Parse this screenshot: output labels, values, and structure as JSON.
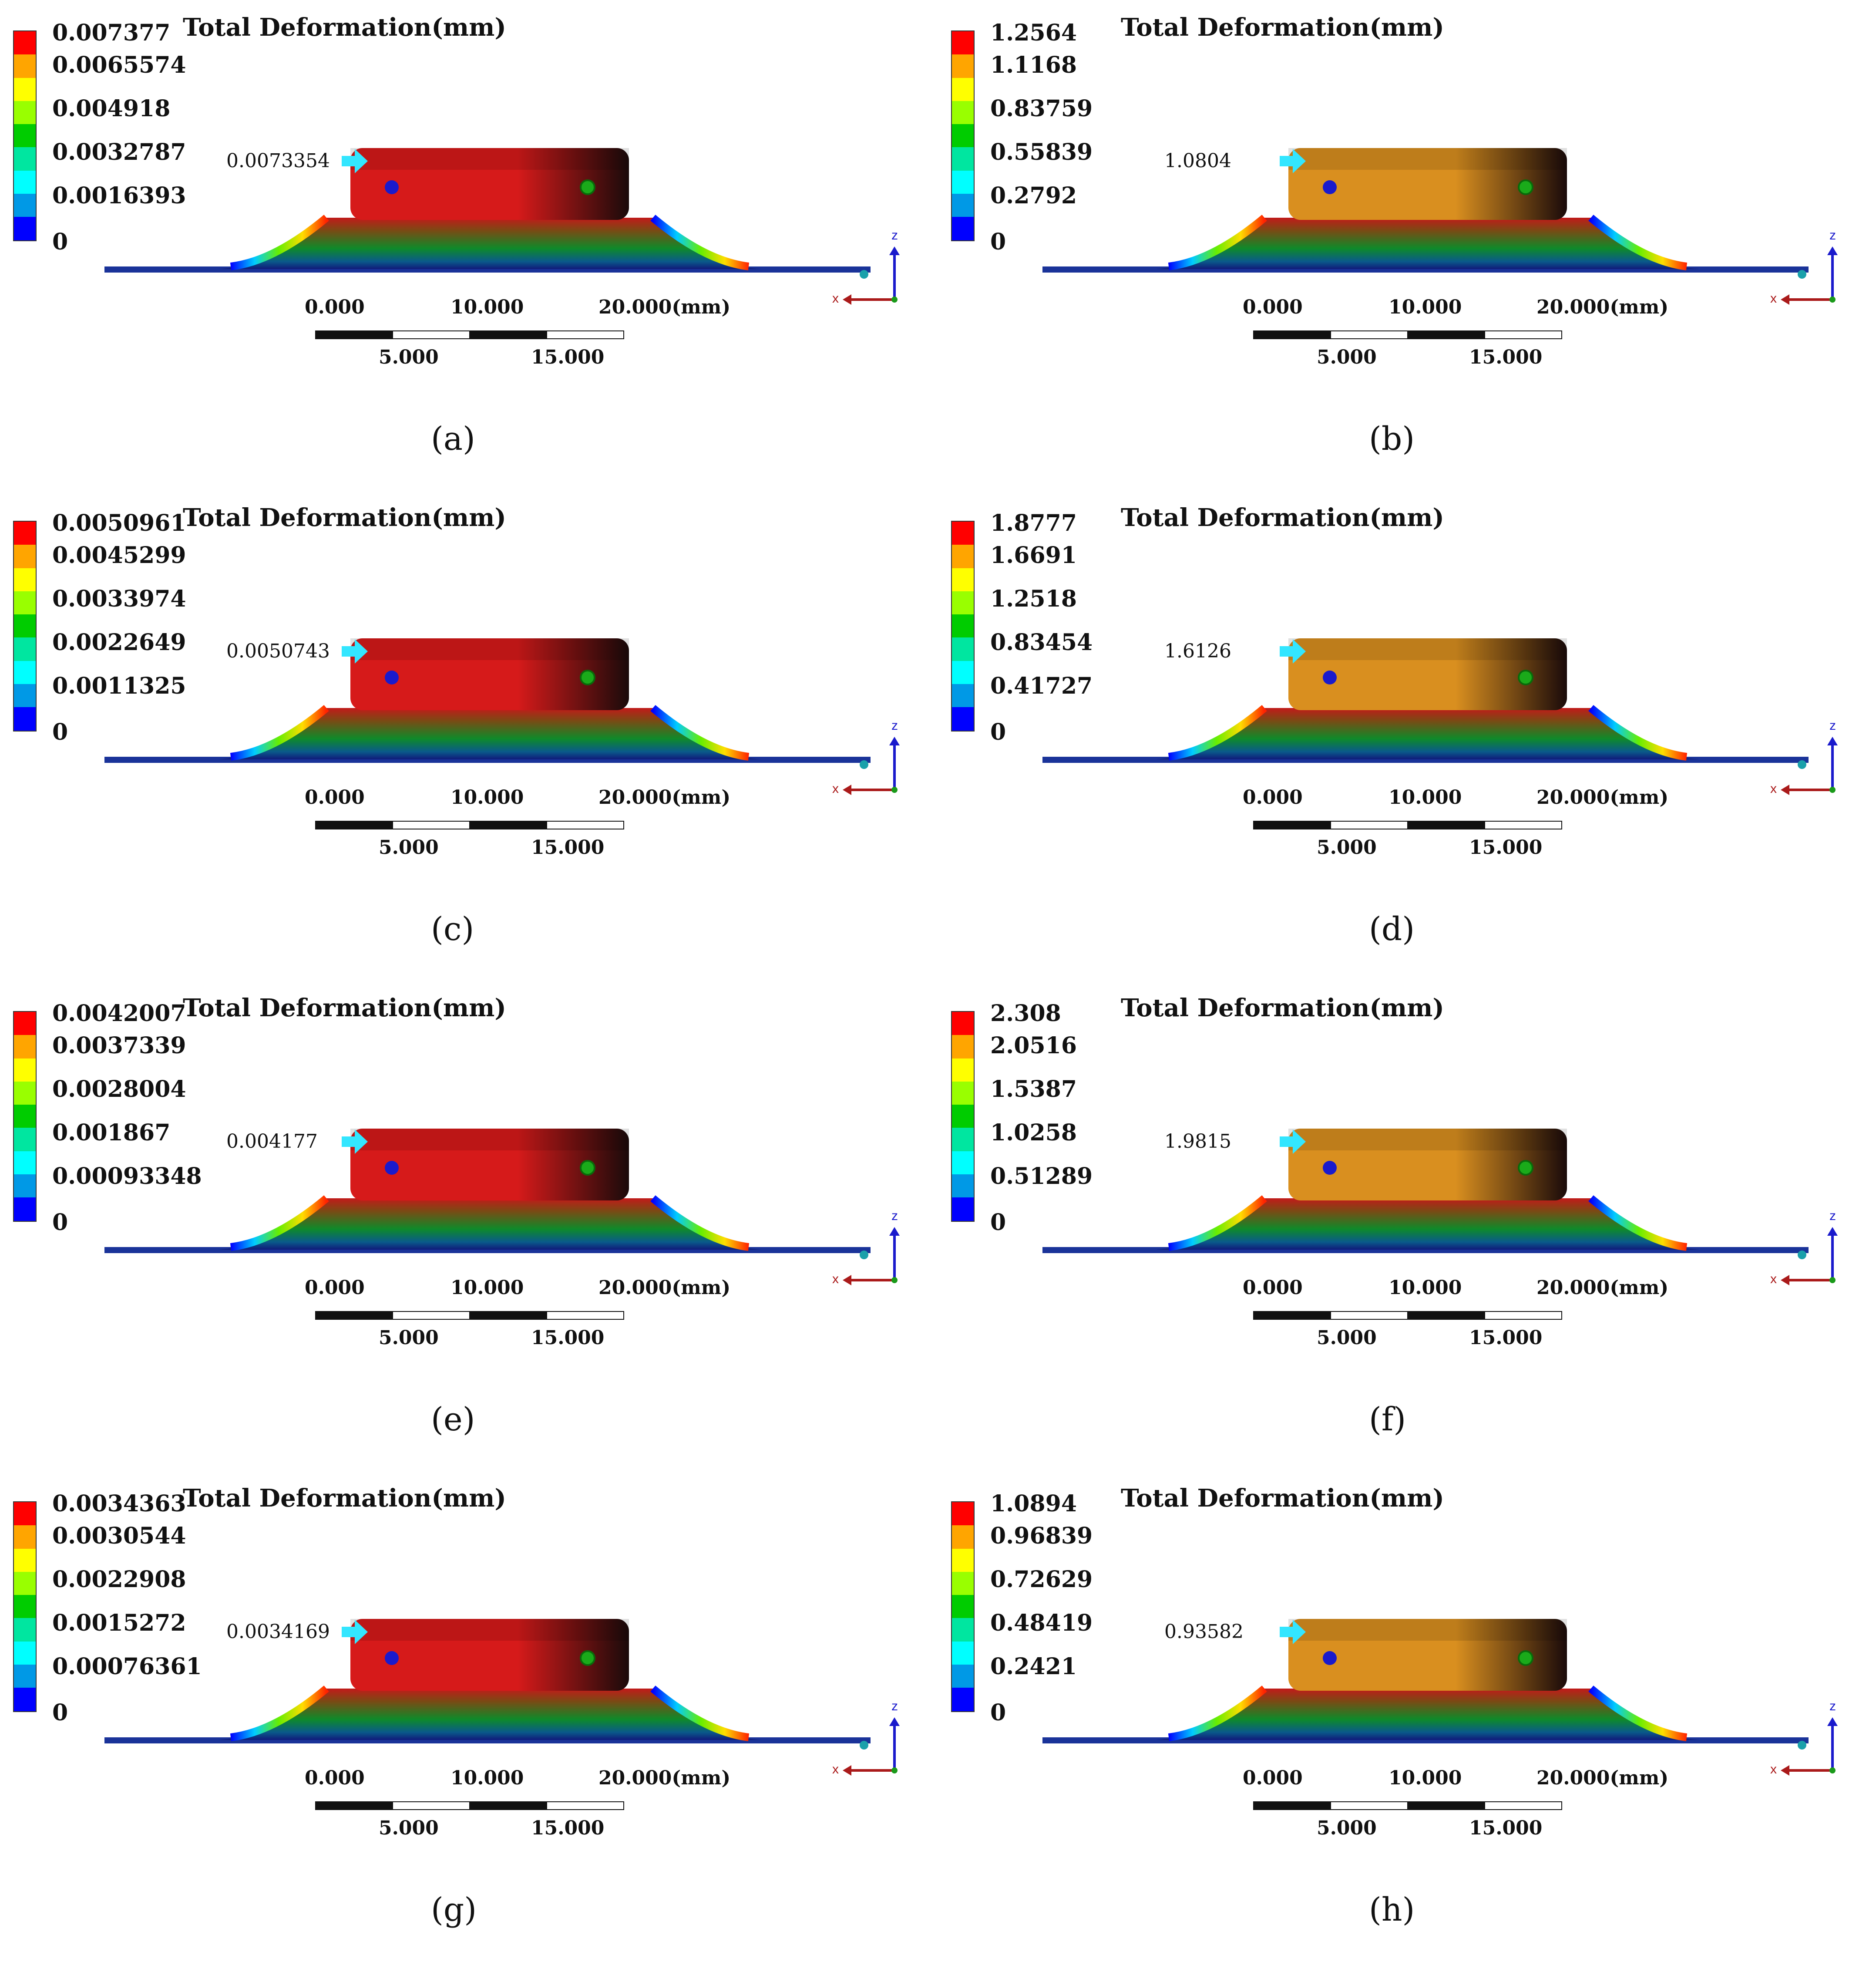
{
  "figure": {
    "title": "Total Deformation(mm)",
    "scale_ticks_top": [
      "0.000",
      "10.000",
      "20.000(mm)"
    ],
    "scale_ticks_bottom": [
      "5.000",
      "15.000"
    ],
    "axis_labels": {
      "z": "z",
      "x": "x"
    },
    "colors": {
      "legend": [
        "#ff0000",
        "#ffa500",
        "#ffff00",
        "#99ff00",
        "#00cc00",
        "#00e6a0",
        "#00ffff",
        "#0099e6",
        "#0000ff"
      ],
      "body_low": "#d61a1a",
      "body_high": "#d98f1f",
      "arrow": "#33e6ff",
      "base_line": "#1a3399"
    }
  },
  "panels": [
    {
      "label": "(a)",
      "legend": [
        "0.007377",
        "0.0065574",
        "0.004918",
        "0.0032787",
        "0.0016393",
        "0"
      ],
      "probe": "0.0073354",
      "body": "low"
    },
    {
      "label": "(b)",
      "legend": [
        "1.2564",
        "1.1168",
        "0.83759",
        "0.55839",
        "0.2792",
        "0"
      ],
      "probe": "1.0804",
      "body": "high"
    },
    {
      "label": "(c)",
      "legend": [
        "0.0050961",
        "0.0045299",
        "0.0033974",
        "0.0022649",
        "0.0011325",
        "0"
      ],
      "probe": "0.0050743",
      "body": "low"
    },
    {
      "label": "(d)",
      "legend": [
        "1.8777",
        "1.6691",
        "1.2518",
        "0.83454",
        "0.41727",
        "0"
      ],
      "probe": "1.6126",
      "body": "high"
    },
    {
      "label": "(e)",
      "legend": [
        "0.0042007",
        "0.0037339",
        "0.0028004",
        "0.001867",
        "0.00093348",
        "0"
      ],
      "probe": "0.004177",
      "body": "low"
    },
    {
      "label": "(f)",
      "legend": [
        "2.308",
        "2.0516",
        "1.5387",
        "1.0258",
        "0.51289",
        "0"
      ],
      "probe": "1.9815",
      "body": "high"
    },
    {
      "label": "(g)",
      "legend": [
        "0.0034363",
        "0.0030544",
        "0.0022908",
        "0.0015272",
        "0.00076361",
        "0"
      ],
      "probe": "0.0034169",
      "body": "low"
    },
    {
      "label": "(h)",
      "legend": [
        "1.0894",
        "0.96839",
        "0.72629",
        "0.48419",
        "0.2421",
        "0"
      ],
      "probe": "0.93582",
      "body": "high"
    }
  ]
}
